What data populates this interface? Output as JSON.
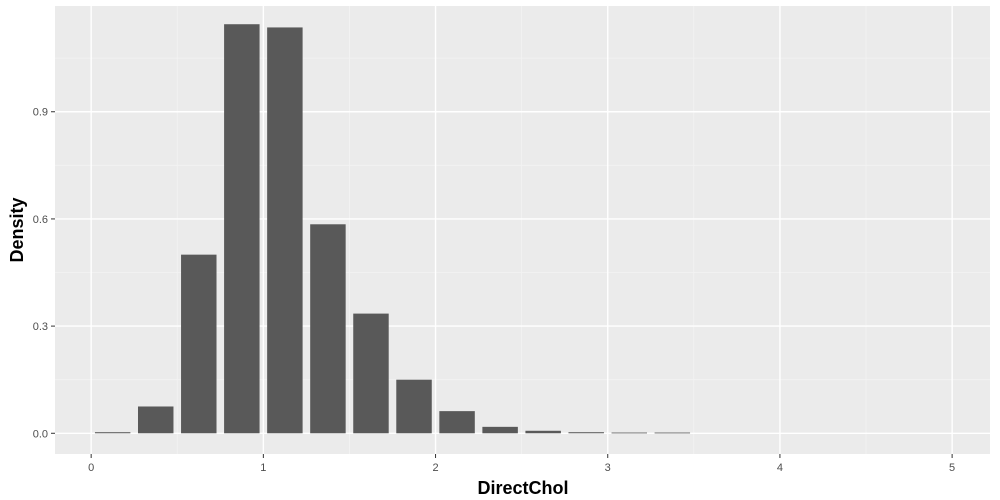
{
  "chart_data": {
    "type": "bar",
    "title": "",
    "xlabel": "DirectChol",
    "ylabel": "Density",
    "xlim": [
      -0.21,
      5.22
    ],
    "ylim": [
      -0.058,
      1.196
    ],
    "x_ticks": [
      0,
      1,
      2,
      3,
      4,
      5
    ],
    "x_tick_labels": [
      "0",
      "1",
      "2",
      "3",
      "4",
      "5"
    ],
    "y_ticks": [
      0.0,
      0.3,
      0.6,
      0.9
    ],
    "y_tick_labels": [
      "0.0",
      "0.3",
      "0.6",
      "0.9"
    ],
    "bin_width": 0.25,
    "grid": true,
    "legend": "none",
    "colors": {
      "panel_background": "#ebebeb",
      "grid_major": "#ffffff",
      "grid_minor": "#f3f3f3",
      "bar_fill": "#595959"
    },
    "bins": [
      {
        "x": 0.125,
        "value": 0.003
      },
      {
        "x": 0.375,
        "value": 0.075
      },
      {
        "x": 0.625,
        "value": 0.5
      },
      {
        "x": 0.875,
        "value": 1.145
      },
      {
        "x": 1.125,
        "value": 1.136
      },
      {
        "x": 1.375,
        "value": 0.585
      },
      {
        "x": 1.625,
        "value": 0.335
      },
      {
        "x": 1.875,
        "value": 0.15
      },
      {
        "x": 2.125,
        "value": 0.062
      },
      {
        "x": 2.375,
        "value": 0.018
      },
      {
        "x": 2.625,
        "value": 0.007
      },
      {
        "x": 2.875,
        "value": 0.003
      },
      {
        "x": 3.125,
        "value": 0.002
      },
      {
        "x": 3.375,
        "value": 0.002
      }
    ]
  }
}
